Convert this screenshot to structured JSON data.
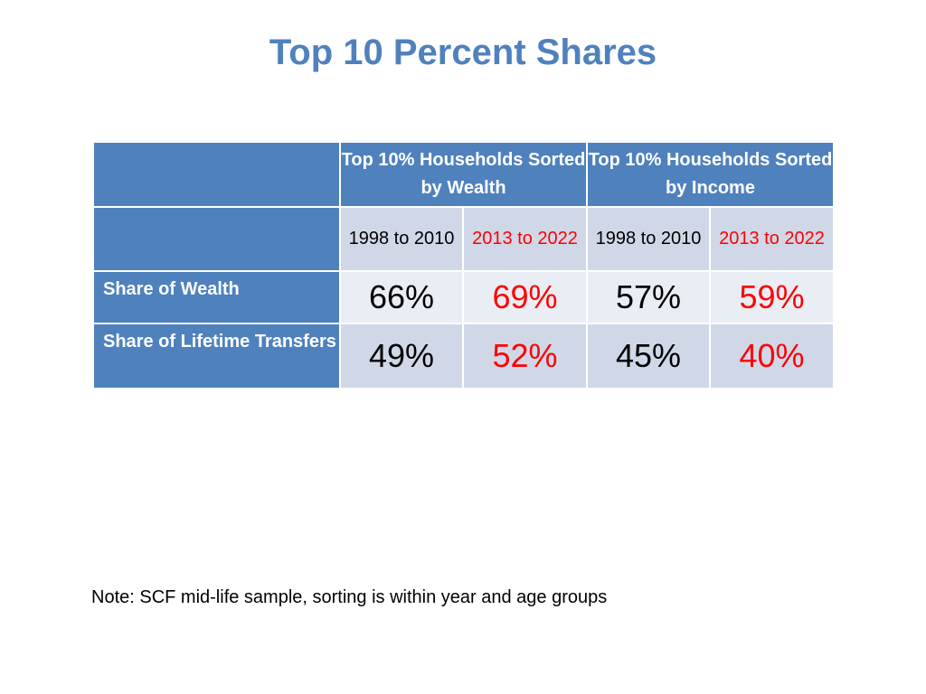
{
  "title": "Top 10 Percent Shares",
  "table": {
    "groups": [
      {
        "label": "Top 10% Households Sorted by Wealth"
      },
      {
        "label": "Top 10% Households Sorted by Income"
      }
    ],
    "periods": [
      "1998 to 2010",
      "2013 to 2022",
      "1998 to 2010",
      "2013 to 2022"
    ],
    "rows": [
      {
        "label": "Share of Wealth",
        "values": [
          "66%",
          "69%",
          "57%",
          "59%"
        ]
      },
      {
        "label": "Share of Lifetime Transfers",
        "values": [
          "49%",
          "52%",
          "45%",
          "40%"
        ]
      }
    ],
    "colors": {
      "header_blue": "#4f81bd",
      "highlight_red": "#ff0000",
      "light_band": "#d0d8e8",
      "lighter_band": "#e9edf4"
    }
  },
  "note": "Note: SCF mid-life sample, sorting is within year and age groups"
}
